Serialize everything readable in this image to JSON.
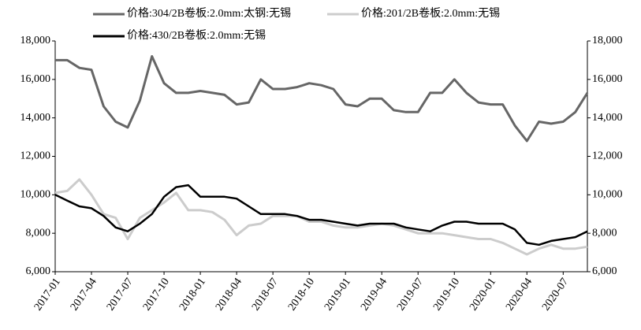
{
  "chart_data": {
    "type": "line",
    "x": [
      "2017-01",
      "2017-02",
      "2017-03",
      "2017-04",
      "2017-05",
      "2017-06",
      "2017-07",
      "2017-08",
      "2017-09",
      "2017-10",
      "2017-11",
      "2017-12",
      "2018-01",
      "2018-02",
      "2018-03",
      "2018-04",
      "2018-05",
      "2018-06",
      "2018-07",
      "2018-08",
      "2018-09",
      "2018-10",
      "2018-11",
      "2018-12",
      "2019-01",
      "2019-02",
      "2019-03",
      "2019-04",
      "2019-05",
      "2019-06",
      "2019-07",
      "2019-08",
      "2019-09",
      "2019-10",
      "2019-11",
      "2019-12",
      "2020-01",
      "2020-02",
      "2020-03",
      "2020-04",
      "2020-05",
      "2020-06",
      "2020-07",
      "2020-08",
      "2020-09"
    ],
    "xticks": [
      "2017-01",
      "2017-04",
      "2017-07",
      "2017-10",
      "2018-01",
      "2018-04",
      "2018-07",
      "2018-10",
      "2019-01",
      "2019-04",
      "2019-07",
      "2019-10",
      "2020-01",
      "2020-04",
      "2020-07"
    ],
    "series": [
      {
        "name": "价格:304/2B卷板:2.0mm:太钢:无锡",
        "color": "#666666",
        "width": 3,
        "values": [
          17000,
          17000,
          16600,
          16500,
          14600,
          13800,
          13500,
          14900,
          17200,
          15800,
          15300,
          15300,
          15400,
          15300,
          15200,
          14700,
          14800,
          16000,
          15500,
          15500,
          15600,
          15800,
          15700,
          15500,
          14700,
          14600,
          15000,
          15000,
          14400,
          14300,
          14300,
          15300,
          15300,
          16000,
          15300,
          14800,
          14700,
          14700,
          13600,
          12800,
          13800,
          13700,
          13800,
          14300,
          15300
        ]
      },
      {
        "name": "价格:201/2B卷板:2.0mm:无锡",
        "color": "#cccccc",
        "width": 3,
        "values": [
          10100,
          10200,
          10800,
          10000,
          9000,
          8800,
          7700,
          8800,
          9200,
          9600,
          10100,
          9200,
          9200,
          9100,
          8700,
          7900,
          8400,
          8500,
          8900,
          8900,
          8900,
          8600,
          8600,
          8400,
          8300,
          8300,
          8400,
          8500,
          8400,
          8200,
          8000,
          8000,
          8000,
          7900,
          7800,
          7700,
          7700,
          7500,
          7200,
          6900,
          7200,
          7400,
          7200,
          7200,
          7300
        ]
      },
      {
        "name": "价格:430/2B卷板:2.0mm:无锡",
        "color": "#000000",
        "width": 2.5,
        "values": [
          10000,
          9700,
          9400,
          9300,
          8900,
          8300,
          8100,
          8500,
          9000,
          9900,
          10400,
          10500,
          9900,
          9900,
          9900,
          9800,
          9400,
          9000,
          9000,
          9000,
          8900,
          8700,
          8700,
          8600,
          8500,
          8400,
          8500,
          8500,
          8500,
          8300,
          8200,
          8100,
          8400,
          8600,
          8600,
          8500,
          8500,
          8500,
          8200,
          7500,
          7400,
          7600,
          7700,
          7800,
          8100
        ]
      }
    ],
    "ylim": [
      6000,
      18000
    ],
    "yticks": [
      {
        "value": 6000,
        "label": "6,000"
      },
      {
        "value": 8000,
        "label": "8,000"
      },
      {
        "value": 10000,
        "label": "10,000"
      },
      {
        "value": 12000,
        "label": "12,000"
      },
      {
        "value": 14000,
        "label": "14,000"
      },
      {
        "value": 16000,
        "label": "16,000"
      },
      {
        "value": 18000,
        "label": "18,000"
      }
    ],
    "y2lim": [
      6000,
      18000
    ],
    "y2ticks": [
      {
        "value": 6000,
        "label": "6,000"
      },
      {
        "value": 8000,
        "label": "8,000"
      },
      {
        "value": 10000,
        "label": "10,000"
      },
      {
        "value": 12000,
        "label": "12,000"
      },
      {
        "value": 14000,
        "label": "14,000"
      },
      {
        "value": 16000,
        "label": "16,000"
      },
      {
        "value": 18000,
        "label": "18,000"
      }
    ],
    "grid": false
  }
}
